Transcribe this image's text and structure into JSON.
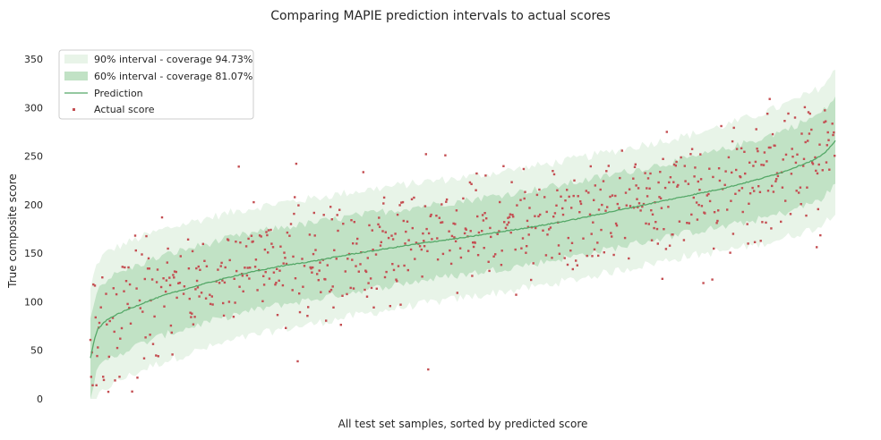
{
  "chart_data": {
    "type": "line",
    "title": "Comparing MAPIE prediction intervals to actual scores",
    "xlabel": "All test set samples, sorted by predicted score",
    "ylabel": "True composite score",
    "ylim": [
      0,
      350
    ],
    "yticks": [
      0,
      50,
      100,
      150,
      200,
      250,
      300,
      350
    ],
    "grid": false,
    "legend_placement": "top-left",
    "n_samples": 1000,
    "prediction_curve": {
      "x": [
        0,
        5,
        10,
        20,
        30,
        50,
        75,
        100,
        150,
        200,
        250,
        300,
        350,
        400,
        450,
        500,
        550,
        600,
        650,
        700,
        750,
        800,
        850,
        900,
        930,
        950,
        970,
        985,
        999
      ],
      "y": [
        42,
        60,
        72,
        80,
        85,
        92,
        100,
        107,
        118,
        128,
        136,
        142,
        149,
        155,
        161,
        166,
        172,
        178,
        185,
        193,
        201,
        209,
        217,
        227,
        234,
        240,
        246,
        253,
        266
      ]
    },
    "interval_60_halfwidth": [
      {
        "x": 0,
        "value": 42
      },
      {
        "x": 200,
        "value": 40
      },
      {
        "x": 500,
        "value": 38
      },
      {
        "x": 800,
        "value": 38
      },
      {
        "x": 999,
        "value": 45
      }
    ],
    "interval_90_halfwidth": [
      {
        "x": 0,
        "value": 70
      },
      {
        "x": 200,
        "value": 66
      },
      {
        "x": 500,
        "value": 62
      },
      {
        "x": 800,
        "value": 62
      },
      {
        "x": 999,
        "value": 72
      }
    ],
    "series": [
      {
        "name": "90% interval - coverage 94.73%",
        "kind": "band",
        "color": "#e8f4e8"
      },
      {
        "name": "60% interval - coverage 81.07%",
        "kind": "band",
        "color": "#c1e2c5"
      },
      {
        "name": "Prediction",
        "kind": "line",
        "color": "#55a868"
      },
      {
        "name": "Actual score",
        "kind": "scatter",
        "color": "#c44e52"
      }
    ]
  },
  "colors": {
    "band_90": "#e8f4e8",
    "band_60": "#c1e2c5",
    "prediction": "#55a868",
    "actual": "#c44e52",
    "text": "#262626",
    "legend_border": "#cccccc"
  }
}
